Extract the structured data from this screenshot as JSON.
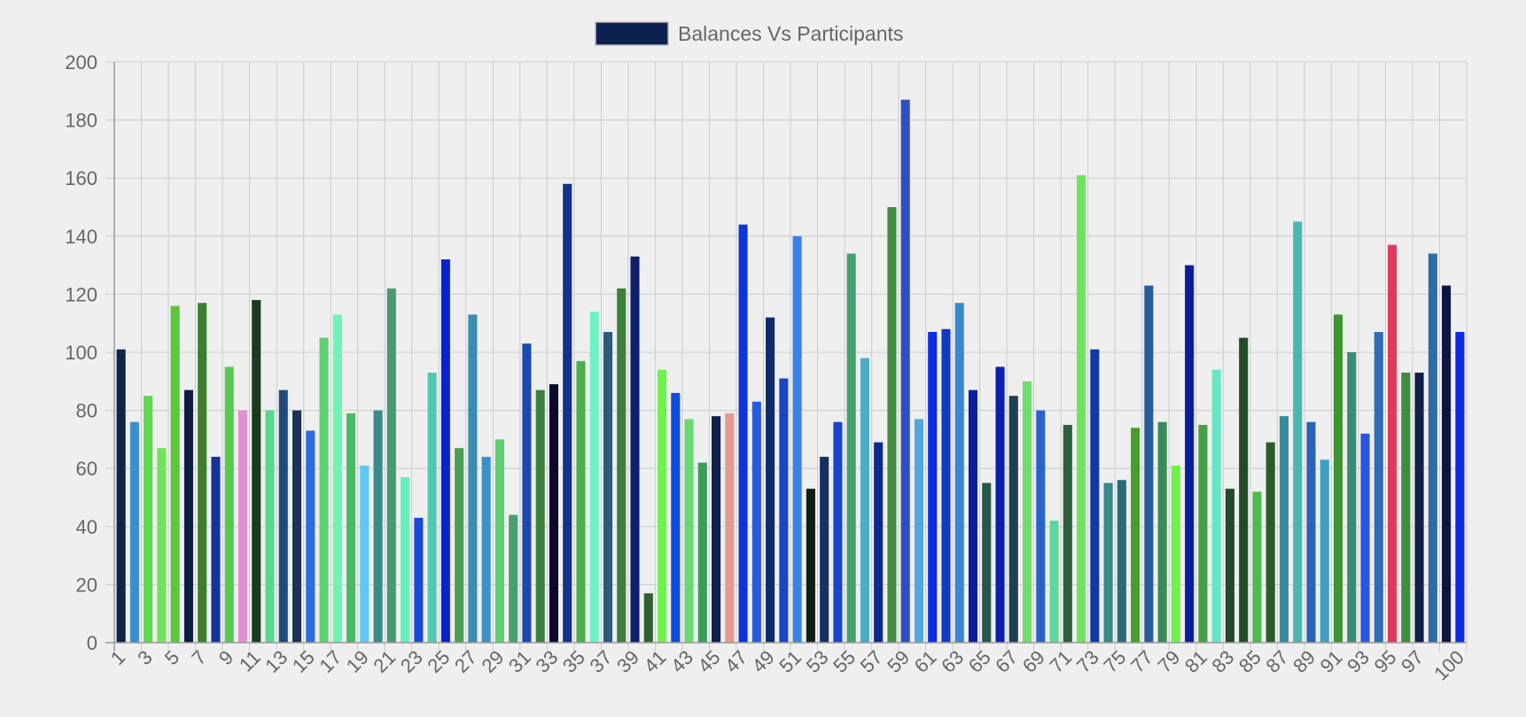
{
  "chart_data": {
    "type": "bar",
    "legend": {
      "label": "Balances Vs Participants",
      "color": "#0c2150",
      "position": "top-center"
    },
    "ylim": [
      0,
      200
    ],
    "yticks": [
      0,
      20,
      40,
      60,
      80,
      100,
      120,
      140,
      160,
      180,
      200
    ],
    "x_tick_labels": [
      "1",
      "3",
      "5",
      "7",
      "9",
      "11",
      "13",
      "15",
      "17",
      "19",
      "21",
      "23",
      "25",
      "27",
      "29",
      "31",
      "33",
      "35",
      "37",
      "39",
      "41",
      "43",
      "45",
      "47",
      "49",
      "51",
      "53",
      "55",
      "57",
      "59",
      "61",
      "63",
      "65",
      "67",
      "69",
      "71",
      "73",
      "75",
      "77",
      "79",
      "81",
      "83",
      "85",
      "87",
      "89",
      "91",
      "93",
      "95",
      "97",
      "100"
    ],
    "grid": true,
    "categories": [
      "1",
      "2",
      "3",
      "4",
      "5",
      "6",
      "7",
      "8",
      "9",
      "10",
      "11",
      "12",
      "13",
      "14",
      "15",
      "16",
      "17",
      "18",
      "19",
      "20",
      "21",
      "22",
      "23",
      "24",
      "25",
      "26",
      "27",
      "28",
      "29",
      "30",
      "31",
      "32",
      "33",
      "34",
      "35",
      "36",
      "37",
      "38",
      "39",
      "40",
      "41",
      "42",
      "43",
      "44",
      "45",
      "46",
      "47",
      "48",
      "49",
      "50",
      "51",
      "52",
      "53",
      "54",
      "55",
      "56",
      "57",
      "58",
      "59",
      "60",
      "61",
      "62",
      "63",
      "64",
      "65",
      "66",
      "67",
      "68",
      "69",
      "70",
      "71",
      "72",
      "73",
      "74",
      "75",
      "76",
      "77",
      "78",
      "79",
      "80",
      "81",
      "82",
      "83",
      "84",
      "85",
      "86",
      "87",
      "88",
      "89",
      "90",
      "91",
      "92",
      "93",
      "94",
      "95",
      "96",
      "97",
      "98",
      "99",
      "100"
    ],
    "values": [
      101,
      76,
      85,
      67,
      116,
      87,
      117,
      64,
      95,
      80,
      118,
      80,
      87,
      80,
      73,
      105,
      113,
      79,
      61,
      80,
      122,
      57,
      43,
      93,
      132,
      67,
      113,
      64,
      70,
      44,
      103,
      87,
      89,
      158,
      97,
      114,
      107,
      122,
      133,
      17,
      94,
      86,
      77,
      62,
      78,
      79,
      144,
      83,
      112,
      91,
      140,
      53,
      64,
      76,
      134,
      98,
      69,
      150,
      187,
      77,
      107,
      108,
      117,
      87,
      55,
      95,
      85,
      90,
      80,
      42,
      75,
      161,
      101,
      55,
      56,
      74,
      123,
      76,
      61,
      130,
      75,
      94,
      53,
      105,
      52,
      69,
      78,
      145,
      76,
      63,
      113,
      100,
      72,
      107,
      137,
      93,
      93,
      134,
      123,
      107
    ],
    "colors": [
      "#0f2446",
      "#3a8fcf",
      "#5fd650",
      "#6fe35a",
      "#5ac83a",
      "#0d1e3f",
      "#3d7f2e",
      "#16339a",
      "#55c850",
      "#e090d0",
      "#1c3a1c",
      "#59d690",
      "#1e4a7a",
      "#1a3356",
      "#2e6be0",
      "#5fcf6f",
      "#72f2b3",
      "#4fb866",
      "#5ec9f2",
      "#3a8a8a",
      "#479b6e",
      "#64f0b8",
      "#1a4bd6",
      "#52c8b1",
      "#0a23d1",
      "#49a055",
      "#3a8cb0",
      "#3c90c8",
      "#5fcf6f",
      "#4a9f6f",
      "#1c48b0",
      "#3d7f3d",
      "#0a0a2f",
      "#13328a",
      "#4cae4c",
      "#6ff2c6",
      "#2c5a7c",
      "#3c803c",
      "#0f1f6e",
      "#2e602e",
      "#6ff24f",
      "#0d4ae0",
      "#69d96f",
      "#3c9c5c",
      "#10204c",
      "#e39a90",
      "#0d36d9",
      "#2a5adf",
      "#0e2a6a",
      "#1a45c9",
      "#3a82e6",
      "#0f1f14",
      "#183060",
      "#1a45c9",
      "#45a070",
      "#4aacc8",
      "#0f2a8f",
      "#458c45",
      "#2d4fc2",
      "#52a8de",
      "#0d2ae6",
      "#143ac0",
      "#3a86cf",
      "#0a1f9a",
      "#25564a",
      "#0a1fb0",
      "#1e4050",
      "#6fdc6f",
      "#2a62cc",
      "#5fd6a0",
      "#2d5f3c",
      "#6fe35f",
      "#0e3aa6",
      "#3a8888",
      "#2a6a7a",
      "#479d2a",
      "#2a5c9c",
      "#3a8a5a",
      "#6ff24a",
      "#0a1f9a",
      "#45a045",
      "#66e6c6",
      "#234a28",
      "#234a28",
      "#52b852",
      "#2a5c2a",
      "#3a8a9a",
      "#4ab6b0",
      "#2a62b6",
      "#3aa0c0",
      "#3e9432",
      "#3a8a7a",
      "#2a55e0",
      "#2f6cb6",
      "#e03a5a",
      "#3e8c3e",
      "#10204c",
      "#2f6ca6",
      "#0e163e",
      "#0d2ae6"
    ]
  }
}
